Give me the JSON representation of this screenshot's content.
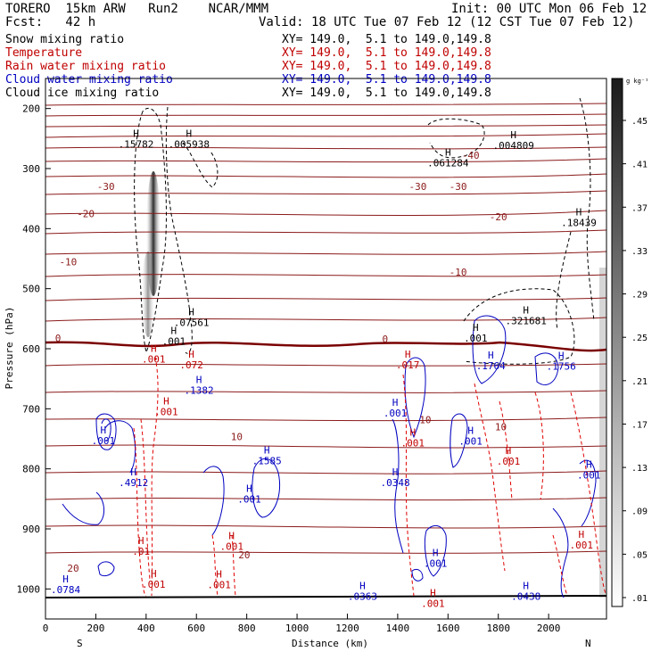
{
  "header": {
    "model": "TORERO  15km ARW   Run2    NCAR/MMM",
    "init": "Init: 00 UTC Mon 06 Feb 12",
    "fcst": "Fcst:   42 h",
    "valid": "Valid: 18 UTC Tue 07 Feb 12 (12 CST Tue 07 Feb 12)"
  },
  "legend": [
    {
      "name": "Snow mixing ratio",
      "color": "#000000",
      "xy": "XY= 149.0,  5.1 to 149.0,149.8"
    },
    {
      "name": "Temperature",
      "color": "#c00000",
      "xy": "XY= 149.0,  5.1 to 149.0,149.8"
    },
    {
      "name": "Rain water mixing ratio",
      "color": "#c00000",
      "xy": "XY= 149.0,  5.1 to 149.0,149.8"
    },
    {
      "name": "Cloud water mixing ratio",
      "color": "#0000c0",
      "xy": "XY= 149.0,  5.1 to 149.0,149.8"
    },
    {
      "name": "Cloud ice mixing ratio",
      "color": "#000000",
      "xy": "XY= 149.0,  5.1 to 149.0,149.8"
    }
  ],
  "chart_data": {
    "type": "line",
    "xlabel": "Distance (km)",
    "ylabel": "Pressure (hPa)",
    "xlim": [
      0,
      2230
    ],
    "ylim": [
      150,
      1050
    ],
    "x_ticks": [
      0,
      200,
      400,
      600,
      800,
      1000,
      1200,
      1400,
      1600,
      1800,
      2000
    ],
    "y_ticks": [
      200,
      300,
      400,
      500,
      600,
      700,
      800,
      900,
      1000
    ],
    "x_end_labels": {
      "left": "S",
      "right": "N"
    },
    "colorbar": {
      "unit": "g kg⁻¹",
      "levels": [
        ".45",
        ".41",
        ".37",
        ".33",
        ".29",
        ".25",
        ".21",
        ".17",
        ".13",
        ".09",
        ".05",
        ".01"
      ]
    },
    "temperature_contour_labels": [
      {
        "label": "-40",
        "x": 1690,
        "p": 278
      },
      {
        "label": "-30",
        "x": 240,
        "p": 330
      },
      {
        "label": "-30",
        "x": 1480,
        "p": 330
      },
      {
        "label": "-30",
        "x": 1640,
        "p": 330
      },
      {
        "label": "-20",
        "x": 160,
        "p": 375
      },
      {
        "label": "-20",
        "x": 1800,
        "p": 380
      },
      {
        "label": "-10",
        "x": 90,
        "p": 455
      },
      {
        "label": "-10",
        "x": 1640,
        "p": 472
      },
      {
        "label": "0",
        "x": 50,
        "p": 582
      },
      {
        "label": "0",
        "x": 1350,
        "p": 584
      },
      {
        "label": "10",
        "x": 760,
        "p": 746
      },
      {
        "label": "10",
        "x": 1510,
        "p": 718
      },
      {
        "label": "10",
        "x": 1810,
        "p": 730
      },
      {
        "label": "20",
        "x": 110,
        "p": 965
      },
      {
        "label": "20",
        "x": 790,
        "p": 943
      }
    ],
    "maxima_labels": [
      {
        "label": ".15782",
        "x": 360,
        "p": 262,
        "color": "#000000"
      },
      {
        "label": ".005938",
        "x": 570,
        "p": 262,
        "color": "#000000"
      },
      {
        "label": ".061284",
        "x": 1600,
        "p": 293,
        "color": "#000000"
      },
      {
        "label": ".004809",
        "x": 1860,
        "p": 264,
        "color": "#000000"
      },
      {
        "label": ".18439",
        "x": 2120,
        "p": 393,
        "color": "#000000"
      },
      {
        "label": ".07561",
        "x": 580,
        "p": 559,
        "color": "#000000"
      },
      {
        "label": ".321681",
        "x": 1910,
        "p": 556,
        "color": "#000000"
      },
      {
        "label": ".001",
        "x": 1710,
        "p": 585,
        "color": "#000000"
      },
      {
        "label": ".001",
        "x": 510,
        "p": 590,
        "color": "#000000"
      },
      {
        "label": ".001",
        "x": 430,
        "p": 620,
        "color": "#c00000"
      },
      {
        "label": ".072",
        "x": 580,
        "p": 630,
        "color": "#c00000"
      },
      {
        "label": ".017",
        "x": 1440,
        "p": 630,
        "color": "#c00000"
      },
      {
        "label": ".1382",
        "x": 610,
        "p": 672,
        "color": "#0000c0"
      },
      {
        "label": ".1764",
        "x": 1770,
        "p": 631,
        "color": "#0000c0"
      },
      {
        "label": ".1756",
        "x": 2050,
        "p": 632,
        "color": "#0000c0"
      },
      {
        "label": ".001",
        "x": 480,
        "p": 708,
        "color": "#c00000"
      },
      {
        "label": ".001",
        "x": 1390,
        "p": 710,
        "color": "#0000c0"
      },
      {
        "label": ".001",
        "x": 1460,
        "p": 760,
        "color": "#c00000"
      },
      {
        "label": ".001",
        "x": 230,
        "p": 756,
        "color": "#0000c0"
      },
      {
        "label": ".001",
        "x": 1690,
        "p": 757,
        "color": "#0000c0"
      },
      {
        "label": ".001",
        "x": 1840,
        "p": 790,
        "color": "#c00000"
      },
      {
        "label": ".1585",
        "x": 880,
        "p": 789,
        "color": "#0000c0"
      },
      {
        "label": ".4912",
        "x": 350,
        "p": 826,
        "color": "#0000c0"
      },
      {
        "label": ".0348",
        "x": 1390,
        "p": 826,
        "color": "#0000c0"
      },
      {
        "label": ".001",
        "x": 810,
        "p": 853,
        "color": "#0000c0"
      },
      {
        "label": ".001",
        "x": 2160,
        "p": 813,
        "color": "#0000c0"
      },
      {
        "label": ".001",
        "x": 740,
        "p": 932,
        "color": "#c00000"
      },
      {
        "label": ".01",
        "x": 380,
        "p": 940,
        "color": "#c00000"
      },
      {
        "label": ".001",
        "x": 1550,
        "p": 960,
        "color": "#0000c0"
      },
      {
        "label": ".001",
        "x": 2130,
        "p": 930,
        "color": "#c00000"
      },
      {
        "label": ".0784",
        "x": 80,
        "p": 1004,
        "color": "#0000c0"
      },
      {
        "label": ".001",
        "x": 430,
        "p": 995,
        "color": "#c00000"
      },
      {
        "label": ".001",
        "x": 690,
        "p": 996,
        "color": "#c00000"
      },
      {
        "label": ".0363",
        "x": 1260,
        "p": 1015,
        "color": "#0000c0"
      },
      {
        "label": ".0438",
        "x": 1910,
        "p": 1015,
        "color": "#0000c0"
      },
      {
        "label": ".001",
        "x": 1540,
        "p": 1027,
        "color": "#c00000"
      }
    ]
  }
}
